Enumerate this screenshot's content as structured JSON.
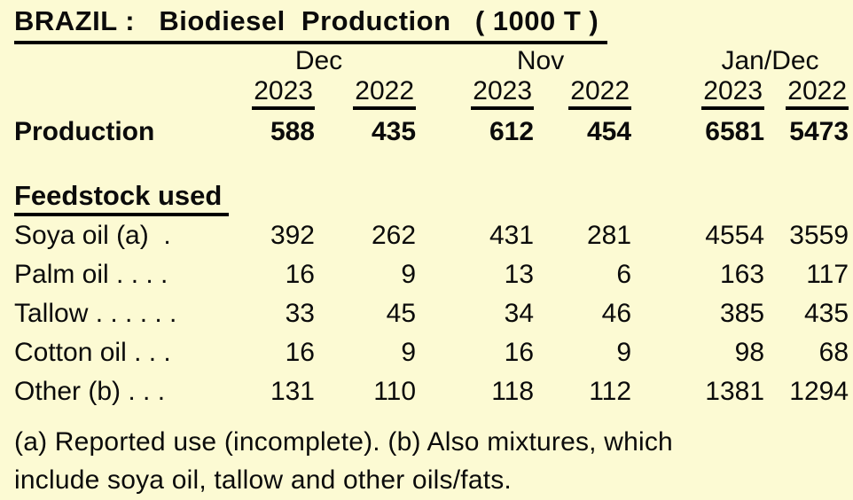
{
  "title": "BRAZIL :   Biodiesel  Production   ( 1000 T )",
  "table": {
    "group_headers": [
      "Dec",
      "Nov",
      "Jan/Dec"
    ],
    "year_headers": [
      "2023",
      "2022",
      "2023",
      "2022",
      "2023",
      "2022"
    ],
    "production_row": {
      "label": "Production",
      "values": [
        "588",
        "435",
        "612",
        "454",
        "6581",
        "5473"
      ]
    },
    "section_heading": "Feedstock used",
    "feedstock_rows": [
      {
        "label": "Soya oil (a)  .",
        "values": [
          "392",
          "262",
          "431",
          "281",
          "4554",
          "3559"
        ]
      },
      {
        "label": "Palm oil . . . .",
        "values": [
          "16",
          "9",
          "13",
          "6",
          "163",
          "117"
        ]
      },
      {
        "label": "Tallow . . . . . .",
        "values": [
          "33",
          "45",
          "34",
          "46",
          "385",
          "435"
        ]
      },
      {
        "label": "Cotton oil . . .",
        "values": [
          "16",
          "9",
          "16",
          "9",
          "98",
          "68"
        ]
      },
      {
        "label": "Other (b) . . .",
        "values": [
          "131",
          "110",
          "118",
          "112",
          "1381",
          "1294"
        ]
      }
    ],
    "footnote": {
      "line1": "(a) Reported use (incomplete). (b) Also mixtures, which",
      "line2": "include soya oil, tallow and other oils/fats."
    }
  },
  "colors": {
    "background": "#FCFAD3",
    "text": "#0B0B0B",
    "rule": "#000000"
  }
}
